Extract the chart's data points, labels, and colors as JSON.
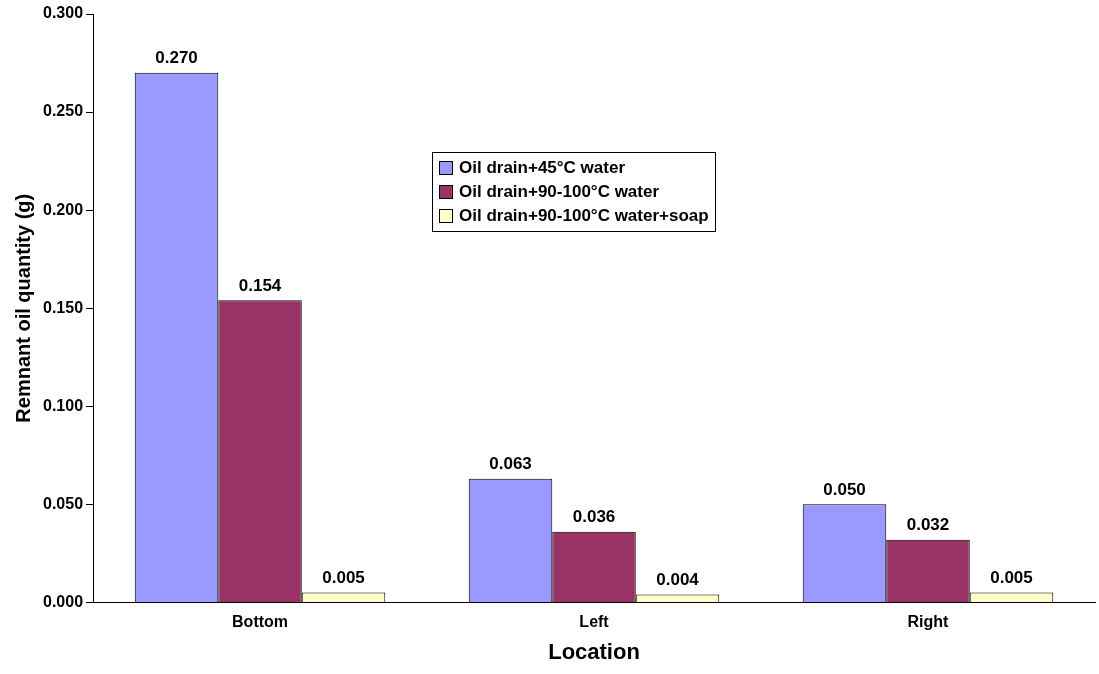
{
  "chart_data": {
    "type": "bar",
    "xlabel": "Location",
    "ylabel": "Remnant oil quantity (g)",
    "categories": [
      "Bottom",
      "Left",
      "Right"
    ],
    "series": [
      {
        "name": "Oil drain+45°C water",
        "color": "#9999ff",
        "values": [
          0.27,
          0.063,
          0.05
        ],
        "value_labels": [
          "0.270",
          "0.063",
          "0.050"
        ]
      },
      {
        "name": "Oil drain+90-100°C water",
        "color": "#993366",
        "values": [
          0.154,
          0.036,
          0.032
        ],
        "value_labels": [
          "0.154",
          "0.036",
          "0.032"
        ]
      },
      {
        "name": "Oil drain+90-100°C water+soap",
        "color": "#ffffcc",
        "values": [
          0.005,
          0.004,
          0.005
        ],
        "value_labels": [
          "0.005",
          "0.004",
          "0.005"
        ]
      }
    ],
    "ylim": [
      0,
      0.3
    ],
    "yticks": [
      {
        "value": 0,
        "label": "0.000"
      },
      {
        "value": 0.05,
        "label": "0.050"
      },
      {
        "value": 0.1,
        "label": "0.100"
      },
      {
        "value": 0.15,
        "label": "0.150"
      },
      {
        "value": 0.2,
        "label": "0.200"
      },
      {
        "value": 0.25,
        "label": "0.250"
      },
      {
        "value": 0.3,
        "label": "0.300"
      }
    ],
    "grid": false,
    "legend": "top"
  }
}
